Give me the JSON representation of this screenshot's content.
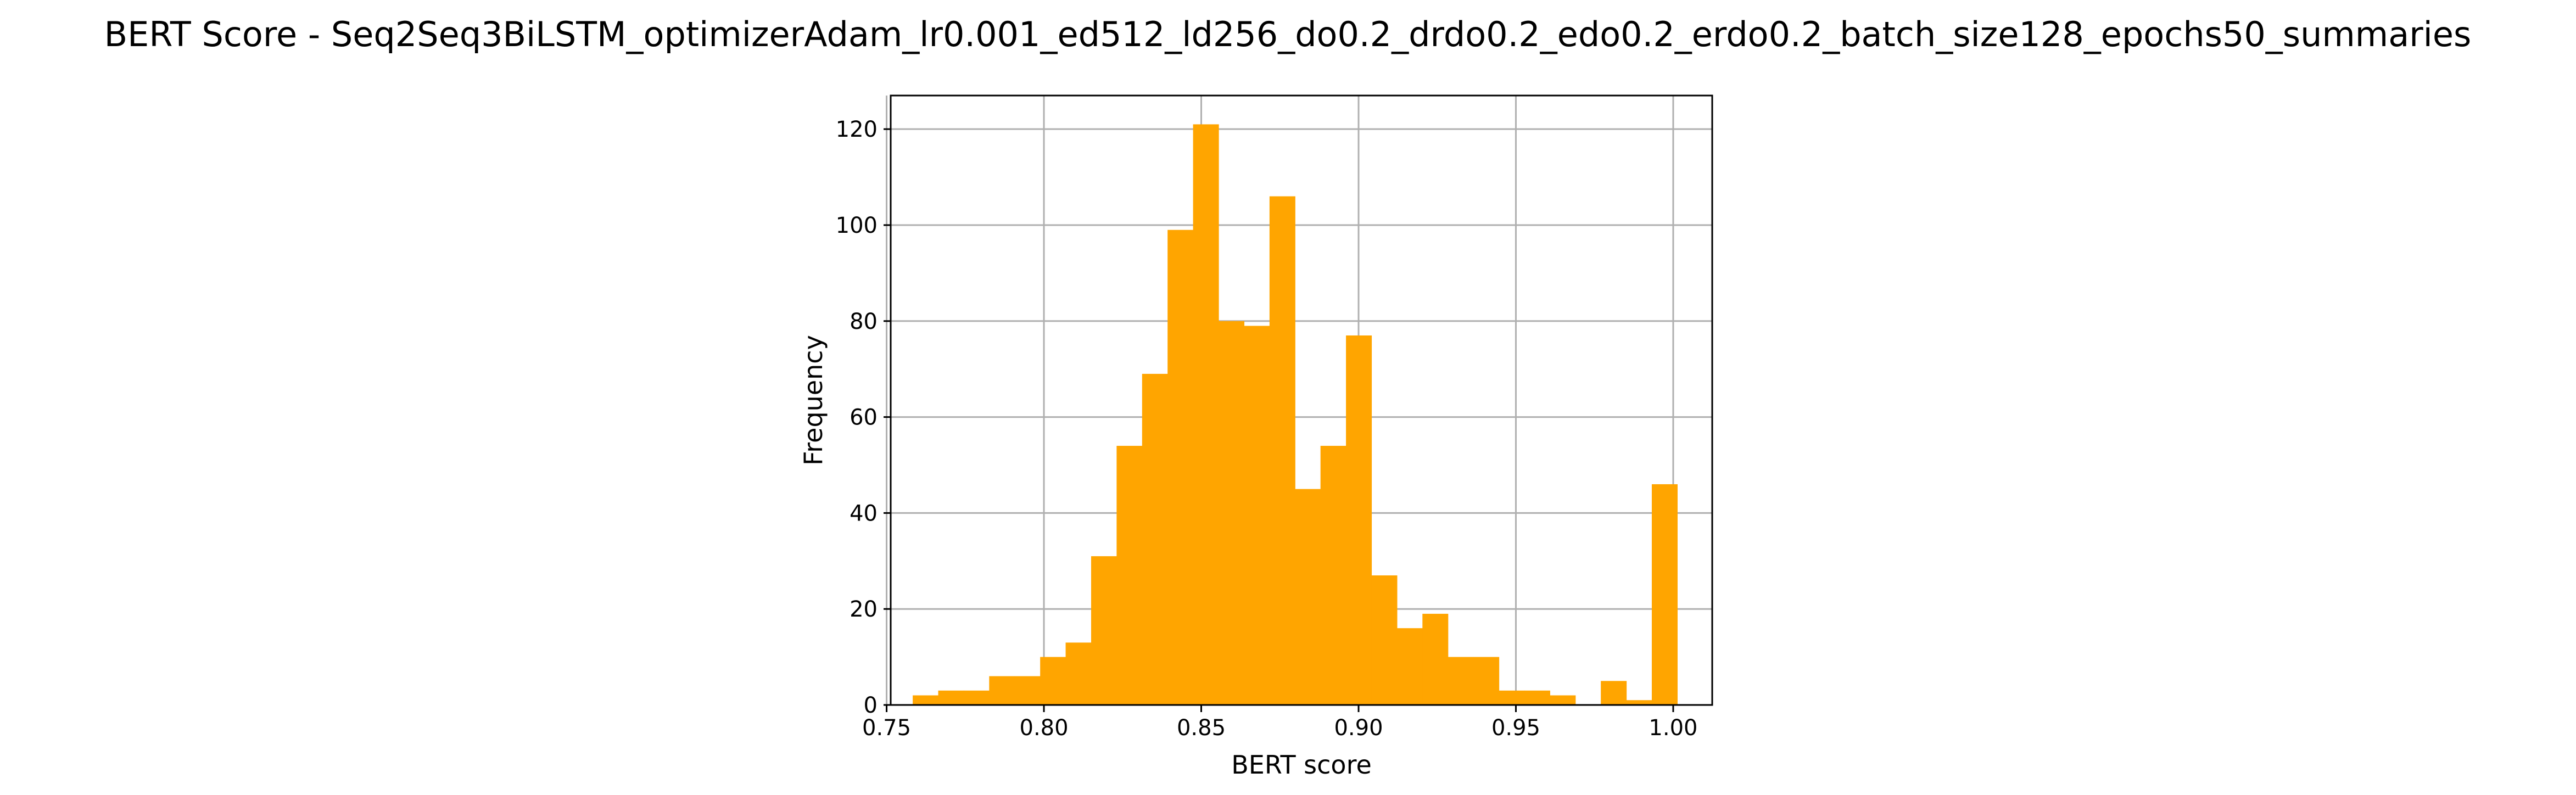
{
  "chart_data": {
    "type": "bar",
    "title": "BERT Score - Seq2Seq3BiLSTM_optimizerAdam_lr0.001_ed512_ld256_do0.2_drdo0.2_edo0.2_erdo0.2_batch_size128_epochs50_summaries",
    "xlabel": "BERT score",
    "ylabel": "Frequency",
    "xlim": [
      0.7513,
      1.0124
    ],
    "ylim": [
      0,
      127
    ],
    "xticks": [
      0.75,
      0.8,
      0.85,
      0.9,
      0.95,
      1.0
    ],
    "xtick_labels": [
      "0.75",
      "0.80",
      "0.85",
      "0.90",
      "0.95",
      "1.00"
    ],
    "yticks": [
      0,
      20,
      40,
      60,
      80,
      100,
      120
    ],
    "ytick_labels": [
      "0",
      "20",
      "40",
      "60",
      "80",
      "100",
      "120"
    ],
    "grid": true,
    "bar_color": "#FFA500",
    "bin_edges": [
      0.7583,
      0.7664,
      0.7745,
      0.7826,
      0.7907,
      0.7988,
      0.8069,
      0.815,
      0.8231,
      0.8312,
      0.8393,
      0.8474,
      0.8555,
      0.8636,
      0.8717,
      0.8798,
      0.8879,
      0.896,
      0.9041,
      0.9122,
      0.9203,
      0.9284,
      0.9365,
      0.9446,
      0.9527,
      0.9608,
      0.9689,
      0.977,
      0.9851,
      0.9932,
      1.0013
    ],
    "values": [
      2,
      3,
      3,
      6,
      6,
      10,
      13,
      31,
      54,
      69,
      99,
      121,
      80,
      79,
      106,
      45,
      54,
      77,
      27,
      16,
      19,
      10,
      10,
      3,
      3,
      2,
      0,
      5,
      1,
      46
    ]
  }
}
